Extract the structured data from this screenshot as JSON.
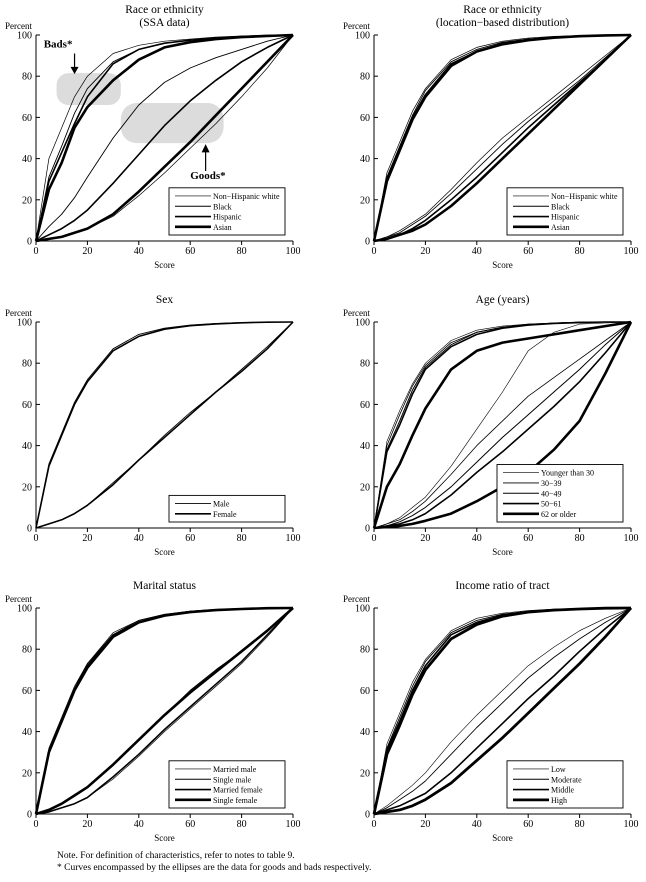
{
  "chart_data": [
    {
      "type": "line",
      "title": "Race or ethnicity",
      "subtitle": "(SSA data)",
      "xlabel": "Score",
      "ylabel": "Percent",
      "xlim": [
        0,
        100
      ],
      "ylim": [
        0,
        100
      ],
      "xticks": [
        0,
        20,
        40,
        60,
        80,
        100
      ],
      "yticks": [
        0,
        20,
        40,
        60,
        80,
        100
      ],
      "legend_position": "bottom-right",
      "x": [
        0,
        5,
        10,
        15,
        20,
        30,
        40,
        50,
        60,
        70,
        80,
        90,
        100
      ],
      "annotations": {
        "bads": "Bads*",
        "goods": "Goods*"
      },
      "series": [
        {
          "name": "Non−Hispanic white",
          "weight": 0.7,
          "bads": [
            0,
            40,
            55,
            70,
            80,
            91,
            95,
            97,
            98,
            99,
            99.5,
            100,
            100
          ],
          "goods": [
            0,
            1,
            2,
            4,
            6,
            12,
            22,
            33,
            45,
            57,
            70,
            84,
            100
          ]
        },
        {
          "name": "Black",
          "weight": 0.9,
          "bads": [
            0,
            31,
            46,
            62,
            74,
            87,
            93,
            96,
            97.5,
            98.5,
            99.3,
            99.7,
            100
          ],
          "goods": [
            0,
            7,
            13,
            21,
            31,
            50,
            66,
            77,
            84,
            89,
            93,
            97,
            100
          ]
        },
        {
          "name": "Hispanic",
          "weight": 1.6,
          "bads": [
            0,
            29,
            43,
            57,
            70,
            86,
            93,
            96,
            97.5,
            98.5,
            99.2,
            99.6,
            100
          ],
          "goods": [
            0,
            3,
            6,
            10,
            15,
            28,
            42,
            56,
            68,
            78,
            87,
            94,
            100
          ]
        },
        {
          "name": "Asian",
          "weight": 2.6,
          "bads": [
            0,
            25,
            38,
            55,
            65,
            78,
            88,
            94,
            96.5,
            98,
            99,
            99.5,
            100
          ],
          "goods": [
            0,
            1,
            2,
            4,
            6,
            13,
            24,
            36,
            48,
            61,
            74,
            87,
            100
          ]
        }
      ]
    },
    {
      "type": "line",
      "title": "Race or ethnicity",
      "subtitle": "(location−based distribution)",
      "xlabel": "Score",
      "ylabel": "Percent",
      "xlim": [
        0,
        100
      ],
      "ylim": [
        0,
        100
      ],
      "xticks": [
        0,
        20,
        40,
        60,
        80,
        100
      ],
      "yticks": [
        0,
        20,
        40,
        60,
        80,
        100
      ],
      "legend_position": "bottom-right",
      "x": [
        0,
        5,
        10,
        15,
        20,
        30,
        40,
        50,
        60,
        70,
        80,
        90,
        100
      ],
      "series": [
        {
          "name": "Non−Hispanic white",
          "weight": 0.7,
          "bads": [
            0,
            33,
            48,
            63,
            74,
            88,
            94,
            97,
            98.5,
            99.3,
            99.7,
            100,
            100
          ],
          "goods": [
            0,
            2,
            5,
            9,
            13,
            25,
            38,
            50,
            60,
            70,
            80,
            90,
            100
          ]
        },
        {
          "name": "Black",
          "weight": 0.9,
          "bads": [
            0,
            31,
            46,
            61,
            73,
            87,
            93,
            96.5,
            98,
            99,
            99.6,
            100,
            100
          ],
          "goods": [
            0,
            2,
            4,
            8,
            12,
            23,
            35,
            47,
            58,
            68,
            78,
            89,
            100
          ]
        },
        {
          "name": "Hispanic",
          "weight": 1.6,
          "bads": [
            0,
            30,
            45,
            60,
            71,
            86,
            92,
            96,
            97.8,
            98.8,
            99.5,
            99.8,
            100
          ],
          "goods": [
            0,
            1,
            3,
            6,
            10,
            20,
            31,
            43,
            55,
            66,
            77,
            88,
            100
          ]
        },
        {
          "name": "Asian",
          "weight": 2.6,
          "bads": [
            0,
            29,
            44,
            59,
            70,
            85,
            92,
            95.5,
            97.5,
            98.7,
            99.4,
            99.8,
            100
          ],
          "goods": [
            0,
            1,
            3,
            5,
            8,
            17,
            28,
            40,
            52,
            64,
            76,
            88,
            100
          ]
        }
      ]
    },
    {
      "type": "line",
      "title": "Sex",
      "xlabel": "Score",
      "ylabel": "Percent",
      "xlim": [
        0,
        100
      ],
      "ylim": [
        0,
        100
      ],
      "xticks": [
        0,
        20,
        40,
        60,
        80,
        100
      ],
      "yticks": [
        0,
        20,
        40,
        60,
        80,
        100
      ],
      "legend_position": "bottom-right",
      "x": [
        0,
        5,
        10,
        15,
        20,
        30,
        40,
        50,
        60,
        70,
        80,
        90,
        100
      ],
      "series": [
        {
          "name": "Male",
          "weight": 0.9,
          "bads": [
            0,
            31,
            46,
            61,
            72,
            87,
            94,
            97,
            98.5,
            99.3,
            99.7,
            100,
            100
          ],
          "goods": [
            0,
            2,
            4,
            7,
            11,
            22,
            33,
            45,
            56,
            66,
            77,
            88,
            100
          ]
        },
        {
          "name": "Female",
          "weight": 1.6,
          "bads": [
            0,
            30,
            45,
            60,
            71,
            86,
            93,
            96.5,
            98.2,
            99.1,
            99.6,
            99.9,
            100
          ],
          "goods": [
            0,
            2,
            4,
            7,
            11,
            21,
            33,
            44,
            55,
            66,
            76,
            87,
            100
          ]
        }
      ]
    },
    {
      "type": "line",
      "title": "Age (years)",
      "xlabel": "Score",
      "ylabel": "Percent",
      "xlim": [
        0,
        100
      ],
      "ylim": [
        0,
        100
      ],
      "xticks": [
        0,
        20,
        40,
        60,
        80,
        100
      ],
      "yticks": [
        0,
        20,
        40,
        60,
        80,
        100
      ],
      "legend_position": "bottom-right",
      "x": [
        0,
        5,
        10,
        15,
        20,
        30,
        40,
        50,
        60,
        70,
        80,
        90,
        100
      ],
      "series": [
        {
          "name": "Younger than 30",
          "weight": 0.6,
          "bads": [
            0,
            42,
            57,
            70,
            80,
            91,
            96,
            98,
            99,
            99.5,
            100,
            100,
            100
          ],
          "goods": [
            0,
            2,
            5,
            10,
            15,
            30,
            48,
            66,
            86,
            95,
            99,
            99.5,
            100
          ]
        },
        {
          "name": "30−39",
          "weight": 0.8,
          "bads": [
            0,
            40,
            55,
            69,
            79,
            90,
            95,
            97.5,
            99,
            99.5,
            100,
            100,
            100
          ],
          "goods": [
            0,
            2,
            4,
            8,
            13,
            26,
            40,
            52,
            64,
            73,
            82,
            91,
            100
          ]
        },
        {
          "name": "40−49",
          "weight": 1.0,
          "bads": [
            0,
            38,
            52,
            67,
            78,
            89,
            95,
            97.5,
            98.5,
            99.5,
            99.8,
            100,
            100
          ],
          "goods": [
            0,
            1,
            3,
            6,
            10,
            20,
            32,
            44,
            55,
            66,
            77,
            89,
            100
          ]
        },
        {
          "name": "50−61",
          "weight": 1.6,
          "bads": [
            0,
            37,
            50,
            65,
            77,
            88,
            94,
            97,
            98.5,
            99.3,
            99.7,
            100,
            100
          ],
          "goods": [
            0,
            1,
            2,
            4,
            7,
            16,
            27,
            37,
            48,
            59,
            71,
            85,
            100
          ]
        },
        {
          "name": "62 or older",
          "weight": 2.6,
          "bads": [
            0,
            20,
            31,
            45,
            58,
            77,
            86,
            90,
            92,
            94,
            96,
            98,
            100
          ],
          "goods": [
            0,
            0.5,
            1,
            2,
            3.5,
            7,
            13,
            20,
            27,
            38,
            52,
            75,
            100
          ]
        }
      ]
    },
    {
      "type": "line",
      "title": "Marital status",
      "xlabel": "Score",
      "ylabel": "Percent",
      "xlim": [
        0,
        100
      ],
      "ylim": [
        0,
        100
      ],
      "xticks": [
        0,
        20,
        40,
        60,
        80,
        100
      ],
      "yticks": [
        0,
        20,
        40,
        60,
        80,
        100
      ],
      "legend_position": "bottom-right",
      "x": [
        0,
        5,
        10,
        15,
        20,
        30,
        40,
        50,
        60,
        70,
        80,
        90,
        100
      ],
      "series": [
        {
          "name": "Married male",
          "weight": 0.7,
          "bads": [
            0,
            32,
            47,
            62,
            73,
            88,
            94,
            97,
            98.5,
            99.3,
            99.7,
            100,
            100
          ],
          "goods": [
            0,
            1,
            3,
            5,
            8,
            17,
            28,
            40,
            51,
            62,
            73,
            86,
            100
          ]
        },
        {
          "name": "Single male",
          "weight": 0.9,
          "bads": [
            0,
            31,
            46,
            61,
            73,
            87,
            94,
            96.8,
            98.3,
            99.2,
            99.7,
            100,
            100
          ],
          "goods": [
            0,
            2,
            5,
            9,
            13,
            24,
            36,
            48,
            60,
            70,
            79,
            89,
            100
          ]
        },
        {
          "name": "Married female",
          "weight": 1.6,
          "bads": [
            0,
            30,
            45,
            60,
            72,
            87,
            93,
            96.5,
            98.2,
            99.1,
            99.6,
            99.9,
            100
          ],
          "goods": [
            0,
            1,
            3,
            5,
            8,
            18,
            29,
            41,
            52,
            63,
            74,
            87,
            100
          ]
        },
        {
          "name": "Single female",
          "weight": 2.6,
          "bads": [
            0,
            30,
            45,
            60,
            71,
            86,
            93,
            96.3,
            98,
            99,
            99.5,
            99.9,
            100
          ],
          "goods": [
            0,
            2,
            5,
            9,
            13,
            24,
            36,
            48,
            59,
            69,
            79,
            89,
            100
          ]
        }
      ]
    },
    {
      "type": "line",
      "title": "Income ratio of tract",
      "xlabel": "Score",
      "ylabel": "Percent",
      "xlim": [
        0,
        100
      ],
      "ylim": [
        0,
        100
      ],
      "xticks": [
        0,
        20,
        40,
        60,
        80,
        100
      ],
      "yticks": [
        0,
        20,
        40,
        60,
        80,
        100
      ],
      "legend_position": "bottom-right",
      "x": [
        0,
        5,
        10,
        15,
        20,
        30,
        40,
        50,
        60,
        70,
        80,
        90,
        100
      ],
      "series": [
        {
          "name": "Low",
          "weight": 0.6,
          "bads": [
            0,
            34,
            49,
            64,
            75,
            89,
            95,
            97.5,
            98.8,
            99.5,
            99.8,
            100,
            100
          ],
          "goods": [
            0,
            4,
            9,
            14,
            20,
            35,
            48,
            60,
            72,
            81,
            89,
            95,
            100
          ]
        },
        {
          "name": "Moderate",
          "weight": 0.9,
          "bads": [
            0,
            32,
            47,
            62,
            74,
            88,
            94,
            97,
            98.5,
            99.3,
            99.7,
            100,
            100
          ],
          "goods": [
            0,
            3,
            7,
            11,
            16,
            29,
            42,
            54,
            66,
            76,
            85,
            93,
            100
          ]
        },
        {
          "name": "Middle",
          "weight": 1.6,
          "bads": [
            0,
            31,
            45,
            60,
            72,
            87,
            93,
            96.5,
            98.2,
            99.1,
            99.6,
            99.9,
            100
          ],
          "goods": [
            0,
            2,
            4,
            7,
            10,
            20,
            32,
            44,
            56,
            67,
            79,
            90,
            100
          ]
        },
        {
          "name": "High",
          "weight": 2.8,
          "bads": [
            0,
            29,
            43,
            58,
            70,
            85,
            92,
            96,
            98,
            99,
            99.5,
            99.9,
            100
          ],
          "goods": [
            0,
            1,
            2,
            4,
            7,
            15,
            26,
            37,
            49,
            61,
            73,
            86,
            100
          ]
        }
      ]
    }
  ],
  "notes": [
    "Note. For definition of characteristics, refer to notes to table 9.",
    "* Curves encompassed by the ellipses are the data for goods and bads respectively."
  ]
}
